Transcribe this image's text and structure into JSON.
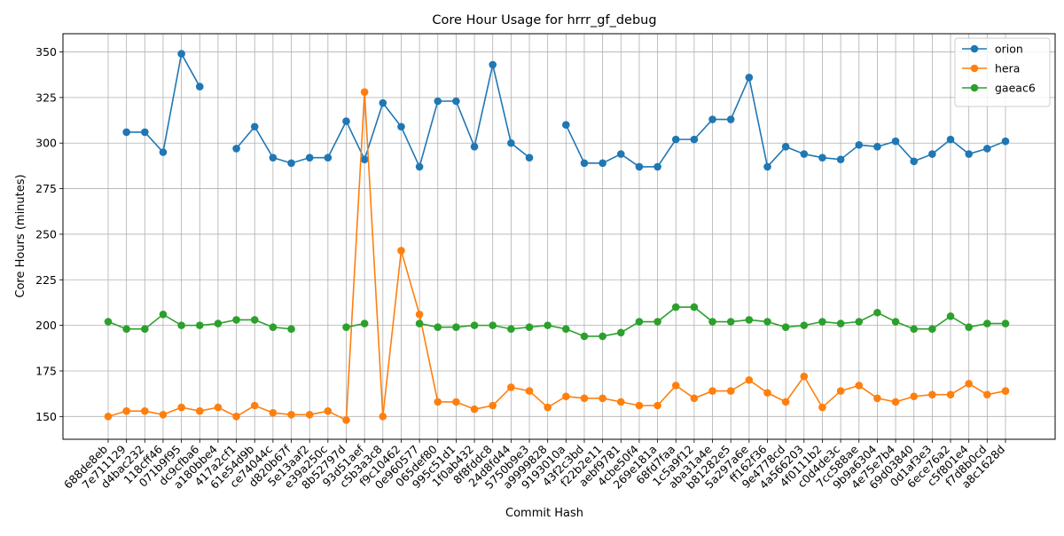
{
  "chart_data": {
    "type": "line",
    "title": "Core Hour Usage for hrrr_gf_debug",
    "xlabel": "Commit Hash",
    "ylabel": "Core Hours (minutes)",
    "ylim": [
      137.5,
      360
    ],
    "yticks": [
      150,
      175,
      200,
      225,
      250,
      275,
      300,
      325,
      350
    ],
    "grid": true,
    "legend_position": "top-right",
    "categories": [
      "688de8eb",
      "7e711129",
      "d4bac232",
      "118cff46",
      "071b9f95",
      "dc9cfba6",
      "a180bbe4",
      "417a2cf1",
      "61e54d9b",
      "ce74044c",
      "d820b67f",
      "5e13aaf2",
      "e39a250c",
      "8b52797d",
      "93d51aef",
      "c5b3a3c8",
      "f9c10462",
      "0e960577",
      "065def80",
      "995c51d1",
      "1f0ab432",
      "8f8fddc8",
      "24d8fd44",
      "5750b9e3",
      "a9999828",
      "9193010a",
      "43f2c3bd",
      "f22b2e11",
      "aebf9781",
      "4cbe50f4",
      "269e181a",
      "68fd7faa",
      "1c5a9f12",
      "aba31a4e",
      "b81282e5",
      "5a297a6e",
      "ff162f36",
      "9e4778cd",
      "4a566203",
      "4f0111b2",
      "c0d4de3c",
      "7cc588ae",
      "9b9a6304",
      "4e75e7b4",
      "69d03840",
      "0d1af3e3",
      "6ece76a2",
      "c5f801e4",
      "f7d8b0cd",
      "a8c1628d"
    ],
    "series": [
      {
        "name": "orion",
        "color": "#1f77b4",
        "values": [
          null,
          306,
          306,
          295,
          349,
          331,
          null,
          297,
          309,
          292,
          289,
          292,
          292,
          312,
          291,
          322,
          309,
          287,
          323,
          323,
          298,
          343,
          300,
          292,
          null,
          310,
          289,
          289,
          294,
          287,
          287,
          302,
          302,
          313,
          313,
          336,
          287,
          298,
          294,
          292,
          291,
          299,
          298,
          301,
          290,
          294,
          302,
          294,
          297,
          301
        ]
      },
      {
        "name": "hera",
        "color": "#ff7f0e",
        "values": [
          150,
          153,
          153,
          151,
          155,
          153,
          155,
          150,
          156,
          152,
          151,
          151,
          153,
          148,
          328,
          150,
          241,
          206,
          158,
          158,
          154,
          156,
          166,
          164,
          155,
          161,
          160,
          160,
          158,
          156,
          156,
          167,
          160,
          164,
          164,
          170,
          163,
          158,
          172,
          155,
          164,
          167,
          160,
          158,
          161,
          162,
          162,
          168,
          162,
          164
        ]
      },
      {
        "name": "gaeac6",
        "color": "#2ca02c",
        "values": [
          202,
          198,
          198,
          206,
          200,
          200,
          201,
          203,
          203,
          199,
          198,
          null,
          null,
          199,
          201,
          null,
          null,
          201,
          199,
          199,
          200,
          200,
          198,
          199,
          200,
          198,
          194,
          194,
          196,
          202,
          202,
          210,
          210,
          202,
          202,
          203,
          202,
          199,
          200,
          202,
          201,
          202,
          207,
          202,
          198,
          198,
          205,
          199,
          201,
          201
        ]
      }
    ]
  }
}
